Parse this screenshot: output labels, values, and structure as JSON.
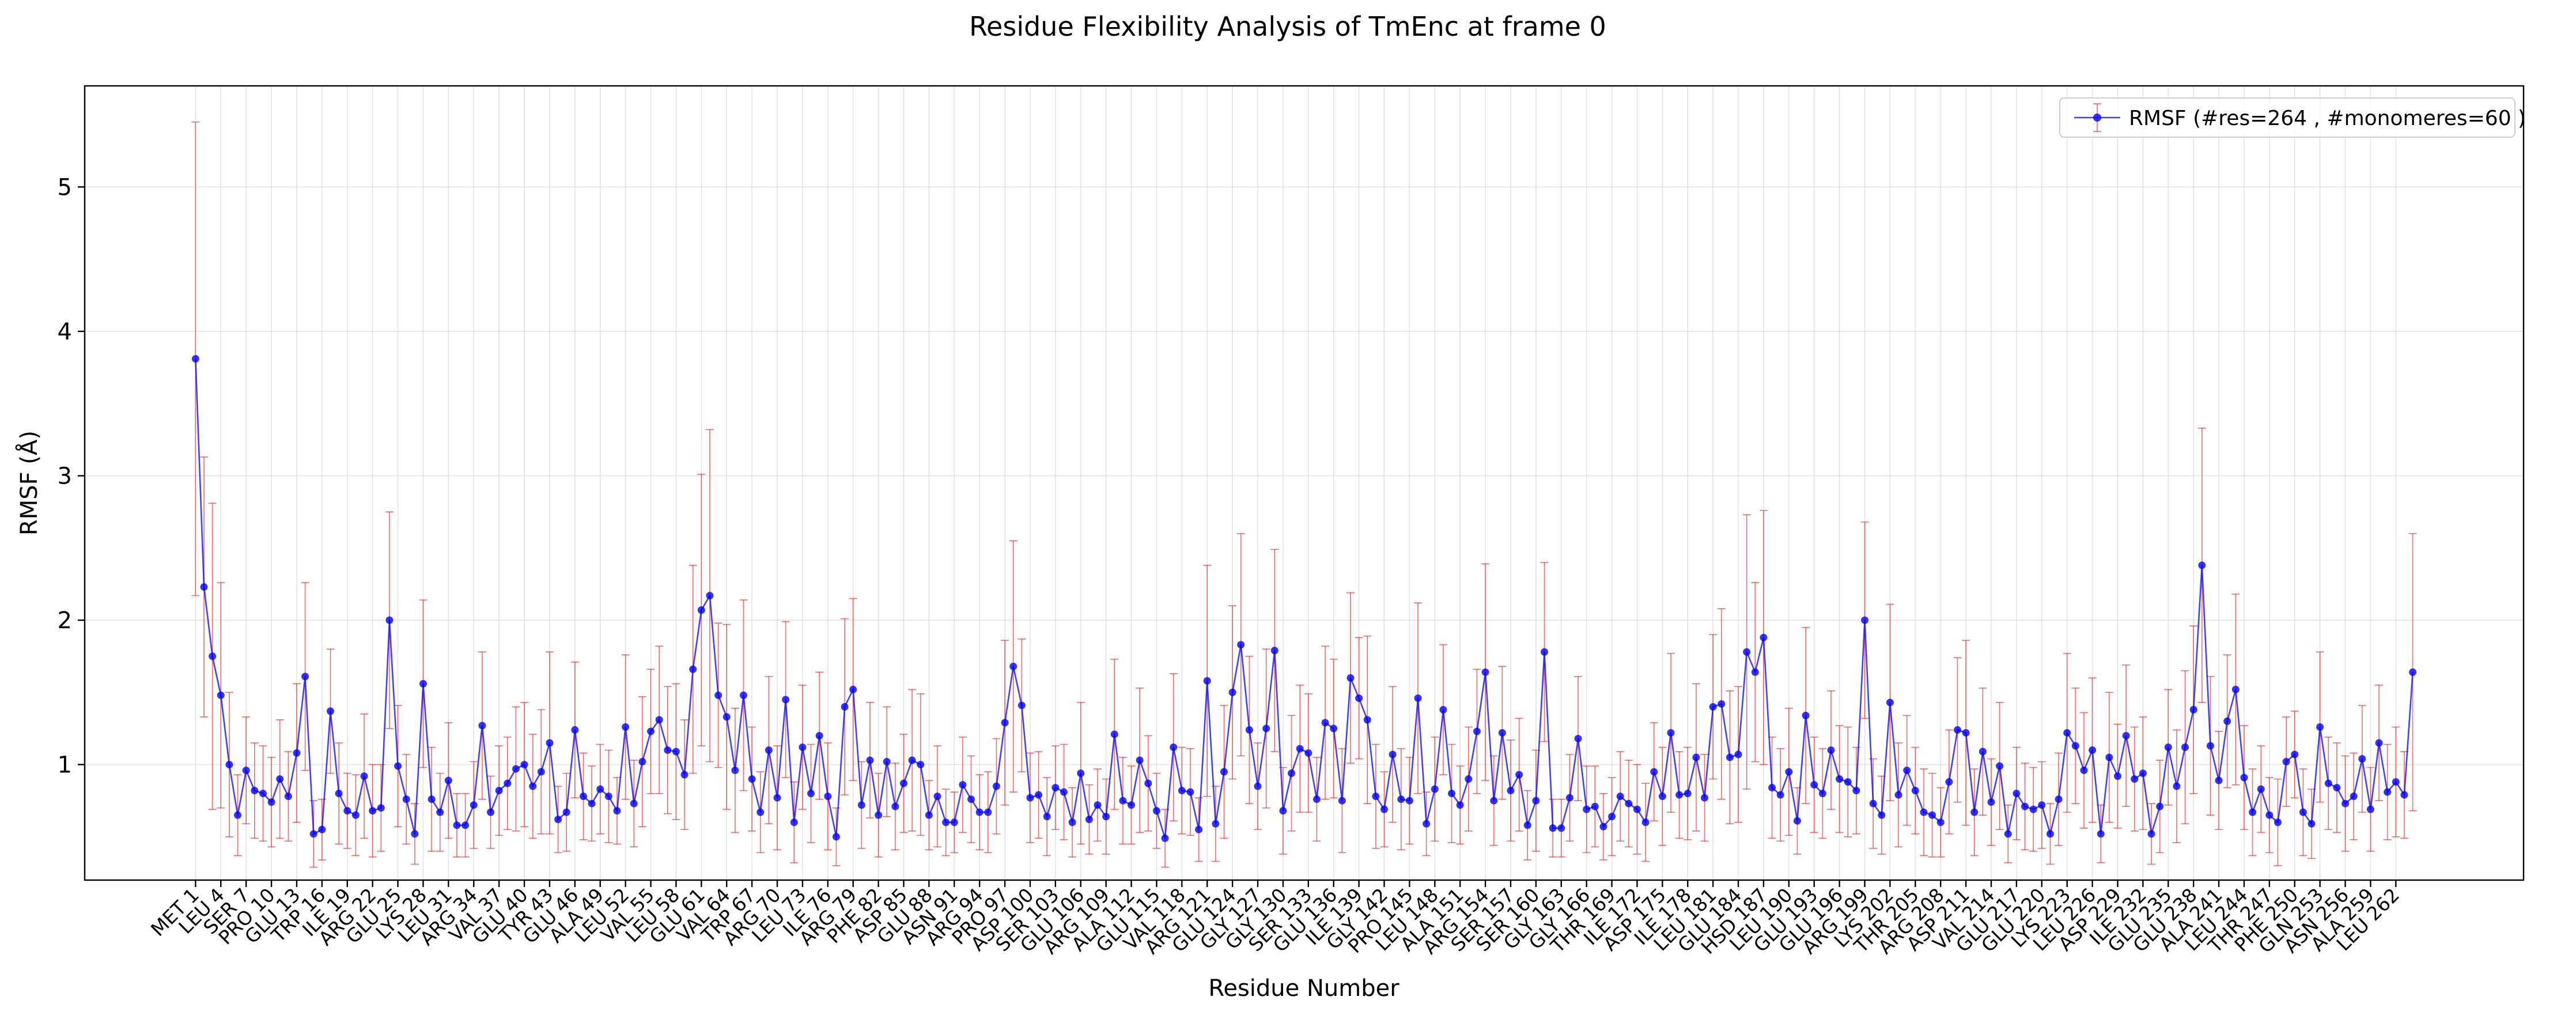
{
  "chart_data": {
    "type": "line",
    "title": "Residue Flexibility Analysis of TmEnc at frame 0",
    "xlabel": "Residue Number",
    "ylabel": "RMSF (Å)",
    "x_range": [
      1,
      264
    ],
    "ylim": [
      0.2,
      5.7
    ],
    "yticks": [
      1,
      2,
      3,
      4,
      5
    ],
    "grid": true,
    "legend_position": "top-right",
    "colors": {
      "line": "#0000ff",
      "marker": "#0000ff",
      "errorbar": "#ff0000",
      "axes": "#000000"
    },
    "xtick_labels": [
      "MET 1",
      "LEU 4",
      "SER 7",
      "PRO 10",
      "GLU 13",
      "TRP 16",
      "ILE 19",
      "ARG 22",
      "GLU 25",
      "LYS 28",
      "LEU 31",
      "ARG 34",
      "VAL 37",
      "GLU 40",
      "TYR 43",
      "GLU 46",
      "ALA 49",
      "LEU 52",
      "VAL 55",
      "LEU 58",
      "GLU 61",
      "VAL 64",
      "TRP 67",
      "ARG 70",
      "LEU 73",
      "ILE 76",
      "ARG 79",
      "PHE 82",
      "ASP 85",
      "GLU 88",
      "ASN 91",
      "ARG 94",
      "PRO 97",
      "ASP 100",
      "SER 103",
      "GLU 106",
      "ARG 109",
      "ALA 112",
      "GLU 115",
      "VAL 118",
      "ARG 121",
      "GLU 124",
      "GLY 127",
      "GLY 130",
      "SER 133",
      "GLU 136",
      "ILE 139",
      "GLY 142",
      "PRO 145",
      "LEU 148",
      "ALA 151",
      "ARG 154",
      "SER 157",
      "SER 160",
      "GLY 163",
      "GLY 166",
      "THR 169",
      "ILE 172",
      "ASP 175",
      "ILE 178",
      "LEU 181",
      "GLU 184",
      "HSD 187",
      "LEU 190",
      "GLU 193",
      "GLU 196",
      "ARG 199",
      "LYS 202",
      "THR 205",
      "ARG 208",
      "ASP 211",
      "VAL 214",
      "GLU 217",
      "GLU 220",
      "LYS 223",
      "LEU 226",
      "ASP 229",
      "ILE 232",
      "GLU 235",
      "GLU 238",
      "ALA 241",
      "LEU 244",
      "THR 247",
      "PHE 250",
      "GLN 253",
      "ASN 256",
      "ALA 259",
      "LEU 262"
    ],
    "series": [
      {
        "name": "RMSF (#res=264 , #monomeres=60 )",
        "x": [
          1,
          2,
          3,
          4,
          5,
          6,
          7,
          8,
          9,
          10,
          11,
          12,
          13,
          14,
          15,
          16,
          17,
          18,
          19,
          20,
          21,
          22,
          23,
          24,
          25,
          26,
          27,
          28,
          29,
          30,
          31,
          32,
          33,
          34,
          35,
          36,
          37,
          38,
          39,
          40,
          41,
          42,
          43,
          44,
          45,
          46,
          47,
          48,
          49,
          50,
          51,
          52,
          53,
          54,
          55,
          56,
          57,
          58,
          59,
          60,
          61,
          62,
          63,
          64,
          65,
          66,
          67,
          68,
          69,
          70,
          71,
          72,
          73,
          74,
          75,
          76,
          77,
          78,
          79,
          80,
          81,
          82,
          83,
          84,
          85,
          86,
          87,
          88,
          89,
          90,
          91,
          92,
          93,
          94,
          95,
          96,
          97,
          98,
          99,
          100,
          101,
          102,
          103,
          104,
          105,
          106,
          107,
          108,
          109,
          110,
          111,
          112,
          113,
          114,
          115,
          116,
          117,
          118,
          119,
          120,
          121,
          122,
          123,
          124,
          125,
          126,
          127,
          128,
          129,
          130,
          131,
          132,
          133,
          134,
          135,
          136,
          137,
          138,
          139,
          140,
          141,
          142,
          143,
          144,
          145,
          146,
          147,
          148,
          149,
          150,
          151,
          152,
          153,
          154,
          155,
          156,
          157,
          158,
          159,
          160,
          161,
          162,
          163,
          164,
          165,
          166,
          167,
          168,
          169,
          170,
          171,
          172,
          173,
          174,
          175,
          176,
          177,
          178,
          179,
          180,
          181,
          182,
          183,
          184,
          185,
          186,
          187,
          188,
          189,
          190,
          191,
          192,
          193,
          194,
          195,
          196,
          197,
          198,
          199,
          200,
          201,
          202,
          203,
          204,
          205,
          206,
          207,
          208,
          209,
          210,
          211,
          212,
          213,
          214,
          215,
          216,
          217,
          218,
          219,
          220,
          221,
          222,
          223,
          224,
          225,
          226,
          227,
          228,
          229,
          230,
          231,
          232,
          233,
          234,
          235,
          236,
          237,
          238,
          239,
          240,
          241,
          242,
          243,
          244,
          245,
          246,
          247,
          248,
          249,
          250,
          251,
          252,
          253,
          254,
          255,
          256,
          257,
          258,
          259,
          260,
          261,
          262,
          263,
          264
        ],
        "y": [
          3.81,
          2.23,
          1.75,
          1.48,
          1.0,
          0.65,
          0.96,
          0.82,
          0.8,
          0.74,
          0.9,
          0.78,
          1.08,
          1.61,
          0.52,
          0.55,
          1.37,
          0.8,
          0.68,
          0.65,
          0.92,
          0.68,
          0.7,
          2.0,
          0.99,
          0.76,
          0.52,
          1.56,
          0.76,
          0.67,
          0.89,
          0.58,
          0.58,
          0.72,
          1.27,
          0.67,
          0.82,
          0.87,
          0.97,
          1.0,
          0.85,
          0.95,
          1.15,
          0.62,
          0.67,
          1.24,
          0.78,
          0.73,
          0.83,
          0.78,
          0.68,
          1.26,
          0.73,
          1.02,
          1.23,
          1.31,
          1.1,
          1.09,
          0.93,
          1.66,
          2.07,
          2.17,
          1.48,
          1.33,
          0.96,
          1.48,
          0.9,
          0.67,
          1.1,
          0.77,
          1.45,
          0.6,
          1.12,
          0.8,
          1.2,
          0.78,
          0.5,
          1.4,
          1.52,
          0.72,
          1.03,
          0.65,
          1.02,
          0.71,
          0.87,
          1.03,
          1.0,
          0.65,
          0.78,
          0.6,
          0.6,
          0.86,
          0.76,
          0.67,
          0.67,
          0.85,
          1.29,
          1.68,
          1.41,
          0.77,
          0.79,
          0.64,
          0.84,
          0.81,
          0.6,
          0.94,
          0.62,
          0.72,
          0.64,
          1.21,
          0.75,
          0.72,
          1.03,
          0.87,
          0.68,
          0.49,
          1.12,
          0.82,
          0.81,
          0.55,
          1.58,
          0.59,
          0.95,
          1.5,
          1.83,
          1.24,
          0.85,
          1.25,
          1.79,
          0.68,
          0.94,
          1.11,
          1.08,
          0.76,
          1.29,
          1.25,
          0.75,
          1.6,
          1.46,
          1.31,
          0.78,
          0.69,
          1.07,
          0.76,
          0.75,
          1.46,
          0.59,
          0.83,
          1.38,
          0.8,
          0.72,
          0.9,
          1.23,
          1.64,
          0.75,
          1.22,
          0.82,
          0.93,
          0.58,
          0.75,
          1.78,
          0.56,
          0.56,
          0.77,
          1.18,
          0.69,
          0.71,
          0.57,
          0.64,
          0.78,
          0.73,
          0.69,
          0.6,
          0.95,
          0.78,
          1.22,
          0.79,
          0.8,
          1.05,
          0.77,
          1.4,
          1.42,
          1.05,
          1.07,
          1.78,
          1.64,
          1.88,
          0.84,
          0.79,
          0.95,
          0.61,
          1.34,
          0.86,
          0.8,
          1.1,
          0.9,
          0.88,
          0.82,
          2.0,
          0.73,
          0.65,
          1.43,
          0.79,
          0.96,
          0.82,
          0.67,
          0.65,
          0.6,
          0.88,
          1.24,
          1.22,
          0.67,
          1.09,
          0.74,
          0.99,
          0.52,
          0.8,
          0.71,
          0.69,
          0.72,
          0.52,
          0.76,
          1.22,
          1.13,
          0.96,
          1.1,
          0.52,
          1.05,
          0.92,
          1.2,
          0.9,
          0.94,
          0.52,
          0.71,
          1.12,
          0.85,
          1.12,
          1.38,
          2.38,
          1.13,
          0.89,
          1.3,
          1.52,
          0.91,
          0.67,
          0.83,
          0.65,
          0.6,
          1.02,
          1.07,
          0.67,
          0.59,
          1.26,
          0.87,
          0.84,
          0.73,
          0.78,
          1.04,
          0.69,
          1.15,
          0.81,
          0.88,
          0.79,
          1.64
        ],
        "error": [
          1.64,
          0.9,
          1.06,
          0.78,
          0.5,
          0.28,
          0.37,
          0.33,
          0.33,
          0.31,
          0.41,
          0.31,
          0.48,
          0.65,
          0.23,
          0.21,
          0.43,
          0.35,
          0.26,
          0.28,
          0.43,
          0.32,
          0.3,
          0.75,
          0.42,
          0.31,
          0.21,
          0.58,
          0.36,
          0.27,
          0.4,
          0.22,
          0.22,
          0.3,
          0.51,
          0.25,
          0.31,
          0.32,
          0.43,
          0.43,
          0.36,
          0.43,
          0.63,
          0.23,
          0.27,
          0.47,
          0.3,
          0.26,
          0.31,
          0.32,
          0.23,
          0.5,
          0.3,
          0.45,
          0.43,
          0.51,
          0.44,
          0.47,
          0.38,
          0.72,
          0.94,
          1.15,
          0.5,
          0.64,
          0.43,
          0.66,
          0.36,
          0.28,
          0.51,
          0.36,
          0.54,
          0.28,
          0.43,
          0.34,
          0.44,
          0.37,
          0.2,
          0.61,
          0.63,
          0.3,
          0.4,
          0.29,
          0.38,
          0.3,
          0.34,
          0.49,
          0.49,
          0.24,
          0.35,
          0.23,
          0.21,
          0.33,
          0.3,
          0.26,
          0.28,
          0.33,
          0.57,
          0.87,
          0.46,
          0.31,
          0.3,
          0.27,
          0.29,
          0.33,
          0.24,
          0.49,
          0.24,
          0.25,
          0.26,
          0.52,
          0.3,
          0.27,
          0.5,
          0.33,
          0.26,
          0.2,
          0.51,
          0.3,
          0.3,
          0.22,
          0.8,
          0.26,
          0.46,
          0.6,
          0.77,
          0.51,
          0.3,
          0.55,
          0.7,
          0.3,
          0.4,
          0.44,
          0.41,
          0.29,
          0.53,
          0.48,
          0.36,
          0.59,
          0.42,
          0.58,
          0.36,
          0.26,
          0.47,
          0.35,
          0.3,
          0.66,
          0.22,
          0.36,
          0.45,
          0.34,
          0.27,
          0.36,
          0.43,
          0.75,
          0.31,
          0.46,
          0.35,
          0.39,
          0.24,
          0.35,
          0.62,
          0.2,
          0.2,
          0.3,
          0.43,
          0.3,
          0.28,
          0.23,
          0.27,
          0.31,
          0.3,
          0.31,
          0.27,
          0.34,
          0.34,
          0.55,
          0.3,
          0.32,
          0.51,
          0.3,
          0.5,
          0.66,
          0.46,
          0.47,
          0.95,
          0.62,
          0.88,
          0.35,
          0.32,
          0.44,
          0.23,
          0.61,
          0.33,
          0.31,
          0.41,
          0.37,
          0.38,
          0.3,
          0.68,
          0.31,
          0.27,
          0.68,
          0.36,
          0.38,
          0.3,
          0.3,
          0.29,
          0.24,
          0.36,
          0.5,
          0.64,
          0.3,
          0.44,
          0.3,
          0.44,
          0.2,
          0.32,
          0.3,
          0.29,
          0.3,
          0.21,
          0.32,
          0.55,
          0.4,
          0.4,
          0.5,
          0.2,
          0.45,
          0.36,
          0.49,
          0.36,
          0.39,
          0.21,
          0.32,
          0.4,
          0.39,
          0.53,
          0.58,
          0.95,
          0.48,
          0.34,
          0.46,
          0.66,
          0.36,
          0.3,
          0.3,
          0.26,
          0.3,
          0.31,
          0.3,
          0.3,
          0.24,
          0.52,
          0.32,
          0.31,
          0.33,
          0.3,
          0.37,
          0.29,
          0.4,
          0.33,
          0.38,
          0.3,
          0.96
        ]
      }
    ]
  }
}
